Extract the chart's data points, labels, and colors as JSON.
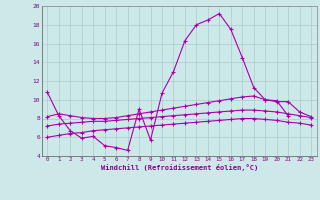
{
  "xlabel": "Windchill (Refroidissement éolien,°C)",
  "background_color": "#cce8e8",
  "grid_color": "#aacccc",
  "line_color": "#aa00aa",
  "x_values": [
    0,
    1,
    2,
    3,
    4,
    5,
    6,
    7,
    8,
    9,
    10,
    11,
    12,
    13,
    14,
    15,
    16,
    17,
    18,
    19,
    20,
    21,
    22,
    23
  ],
  "series1": [
    10.8,
    8.3,
    6.7,
    5.9,
    6.1,
    5.1,
    4.9,
    4.6,
    9.0,
    5.7,
    10.7,
    13.0,
    16.3,
    18.0,
    18.5,
    19.2,
    17.5,
    14.5,
    11.3,
    10.0,
    9.9,
    8.3,
    null,
    null
  ],
  "series2": [
    8.2,
    8.5,
    8.3,
    8.1,
    8.0,
    8.0,
    8.1,
    8.3,
    8.5,
    8.7,
    8.9,
    9.1,
    9.3,
    9.5,
    9.7,
    9.9,
    10.1,
    10.3,
    10.4,
    10.0,
    9.8,
    9.8,
    8.7,
    8.2
  ],
  "series3": [
    7.2,
    7.4,
    7.5,
    7.6,
    7.7,
    7.7,
    7.8,
    7.9,
    8.0,
    8.1,
    8.2,
    8.3,
    8.4,
    8.5,
    8.6,
    8.7,
    8.8,
    8.9,
    8.9,
    8.8,
    8.7,
    8.5,
    8.3,
    8.1
  ],
  "series4": [
    6.0,
    6.2,
    6.4,
    6.5,
    6.7,
    6.8,
    6.9,
    7.0,
    7.1,
    7.2,
    7.3,
    7.4,
    7.5,
    7.6,
    7.7,
    7.8,
    7.9,
    8.0,
    8.0,
    7.9,
    7.8,
    7.6,
    7.5,
    7.3
  ],
  "ylim": [
    4,
    20
  ],
  "xlim": [
    -0.5,
    23.5
  ],
  "yticks": [
    4,
    6,
    8,
    10,
    12,
    14,
    16,
    18,
    20
  ],
  "xticks": [
    0,
    1,
    2,
    3,
    4,
    5,
    6,
    7,
    8,
    9,
    10,
    11,
    12,
    13,
    14,
    15,
    16,
    17,
    18,
    19,
    20,
    21,
    22,
    23
  ]
}
